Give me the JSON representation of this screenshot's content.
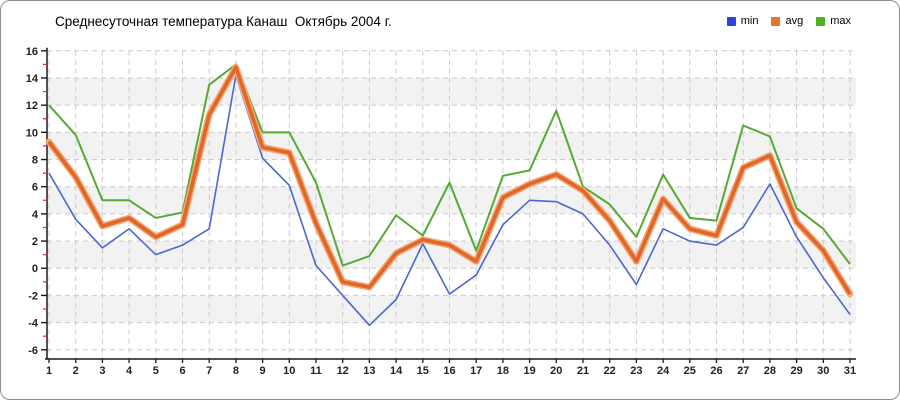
{
  "title": "Среднесуточная температура Канаш  Октябрь 2004 г.",
  "legend": {
    "items": [
      {
        "label": "min",
        "color": "#2d43dd"
      },
      {
        "label": "avg",
        "color": "#e9712d"
      },
      {
        "label": "max",
        "color": "#4db223"
      }
    ]
  },
  "chart_data": {
    "type": "line",
    "title": "Среднесуточная температура Канаш  Октябрь 2004 г.",
    "xlabel": "",
    "ylabel": "",
    "x": [
      1,
      2,
      3,
      4,
      5,
      6,
      7,
      8,
      9,
      10,
      11,
      12,
      13,
      14,
      15,
      16,
      17,
      18,
      19,
      20,
      21,
      22,
      23,
      24,
      25,
      26,
      27,
      28,
      29,
      30,
      31
    ],
    "ylim": [
      -6,
      16
    ],
    "y_ticks": [
      16,
      14,
      12,
      10,
      8,
      6,
      4,
      2,
      0,
      -2,
      -4,
      -6
    ],
    "grid": true,
    "legend_position": "top-right",
    "series": [
      {
        "name": "min",
        "color": "#4a67d2",
        "width": 1.6,
        "values": [
          7.0,
          3.6,
          1.5,
          2.9,
          1.0,
          1.7,
          2.9,
          14.2,
          8.1,
          6.1,
          0.2,
          -2.0,
          -4.2,
          -2.3,
          1.8,
          -1.9,
          -0.5,
          3.2,
          5.0,
          4.9,
          4.0,
          1.7,
          -1.2,
          2.9,
          2.0,
          1.7,
          3.0,
          6.2,
          2.3,
          -0.7,
          -3.4
        ]
      },
      {
        "name": "avg",
        "color": "#e2662a",
        "halo_color": "#f3a873",
        "width": 3.6,
        "values": [
          9.3,
          6.7,
          3.1,
          3.7,
          2.3,
          3.2,
          11.3,
          14.8,
          8.9,
          8.5,
          3.3,
          -1.0,
          -1.4,
          1.1,
          2.1,
          1.7,
          0.5,
          5.2,
          6.2,
          6.9,
          5.7,
          3.5,
          0.5,
          5.1,
          2.9,
          2.4,
          7.4,
          8.3,
          3.4,
          1.3,
          -1.9
        ]
      },
      {
        "name": "max",
        "color": "#57a934",
        "width": 2,
        "values": [
          12.0,
          9.8,
          5.0,
          5.0,
          3.7,
          4.1,
          13.5,
          15.0,
          10.0,
          10.0,
          6.3,
          0.2,
          0.9,
          3.9,
          2.4,
          6.3,
          1.3,
          6.8,
          7.2,
          11.6,
          6.0,
          4.7,
          2.3,
          6.9,
          3.7,
          3.5,
          10.5,
          9.7,
          4.4,
          2.9,
          0.3
        ]
      }
    ],
    "style": {
      "grid_color": "#cbcbcb",
      "band_color": "#f2f2f2",
      "axis_color": "#1a1a1a",
      "minor_tick_color": "#d03333",
      "plot_background": "#ffffff"
    }
  }
}
